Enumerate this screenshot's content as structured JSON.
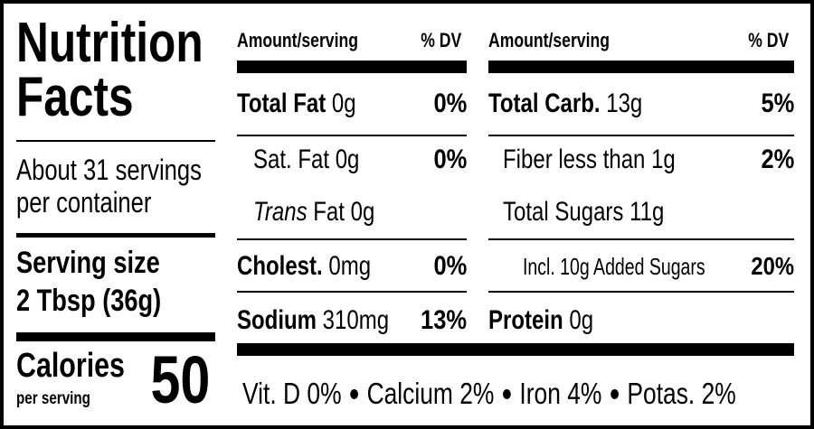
{
  "label": {
    "title": [
      "Nutrition",
      "Facts"
    ],
    "servings": [
      "About 31 servings",
      "per container"
    ],
    "serving_size_label": "Serving size",
    "serving_size": "2 Tbsp (36g)",
    "calories_label": "Calories",
    "calories_note": "per serving",
    "calories": "50",
    "columns": [
      {
        "amount_header": "Amount/serving",
        "dv_header": "% DV",
        "rows": [
          {
            "name": "Total Fat",
            "amount": "0g",
            "dv": "0%"
          },
          {
            "name": "Sat. Fat",
            "amount": "0g",
            "dv": "0%"
          },
          {
            "italic": "Trans",
            "name": "Fat",
            "amount": "0g"
          },
          {
            "name": "Cholest.",
            "amount": "0mg",
            "dv": "0%"
          },
          {
            "name": "Sodium",
            "amount": "310mg",
            "dv": "13%"
          }
        ]
      },
      {
        "amount_header": "Amount/serving",
        "dv_header": "% DV",
        "rows": [
          {
            "name": "Total Carb.",
            "amount": "13g",
            "dv": "5%"
          },
          {
            "name": "Fiber less than",
            "amount": "1g",
            "dv": "2%"
          },
          {
            "name": "Total Sugars",
            "amount": "11g"
          },
          {
            "name": "Incl. 10g Added Sugars",
            "dv": "20%"
          },
          {
            "name": "Protein",
            "amount": "0g"
          }
        ]
      }
    ],
    "footer": [
      "Vit. D 0%",
      "Calcium 2%",
      "Iron 4%",
      "Potas. 2%"
    ]
  }
}
